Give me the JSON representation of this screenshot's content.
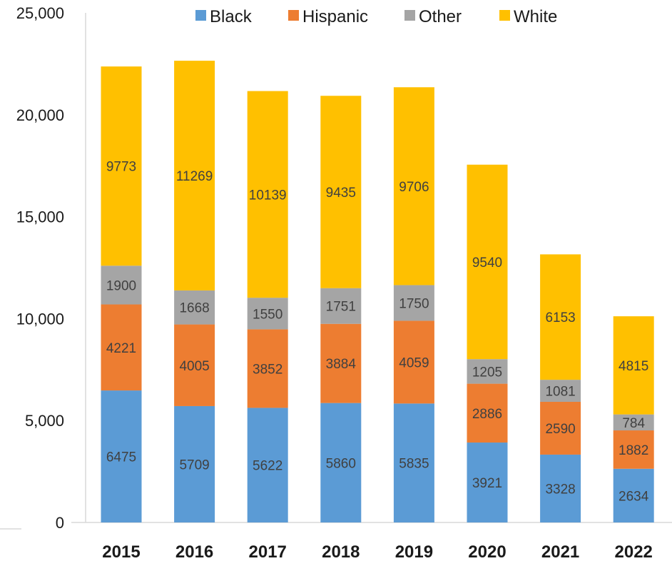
{
  "chart_data": {
    "type": "bar",
    "stacked": true,
    "categories": [
      "2015",
      "2016",
      "2017",
      "2018",
      "2019",
      "2020",
      "2021",
      "2022"
    ],
    "series": [
      {
        "name": "Black",
        "color": "#5B9BD5",
        "values": [
          6475,
          5709,
          5622,
          5860,
          5835,
          3921,
          3328,
          2634
        ]
      },
      {
        "name": "Hispanic",
        "color": "#ED7D31",
        "values": [
          4221,
          4005,
          3852,
          3884,
          4059,
          2886,
          2590,
          1882
        ]
      },
      {
        "name": "Other",
        "color": "#A5A5A5",
        "values": [
          1900,
          1668,
          1550,
          1751,
          1750,
          1205,
          1081,
          784
        ]
      },
      {
        "name": "White",
        "color": "#FFC000",
        "values": [
          9773,
          11269,
          10139,
          9435,
          9706,
          9540,
          6153,
          4815
        ]
      }
    ],
    "ylim": [
      0,
      25000
    ],
    "y_ticks": [
      "0",
      "5,000",
      "10,000",
      "15,000",
      "20,000",
      "25,000"
    ],
    "grid": false,
    "legend_position": "top",
    "data_labels": true
  }
}
